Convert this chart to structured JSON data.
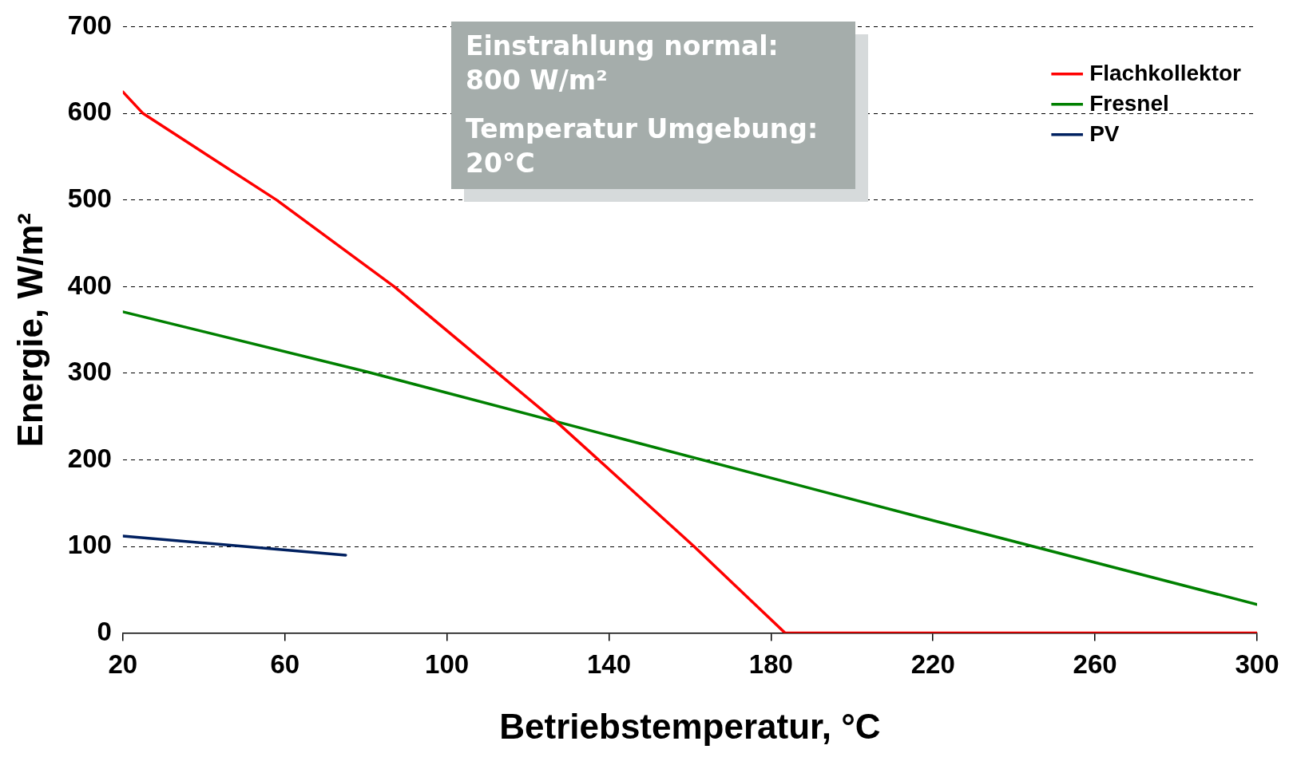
{
  "chart_data": {
    "type": "line",
    "xlabel": "Betriebstemperatur, °C",
    "ylabel": "Energie, W/m²",
    "annotations": [
      "Einstrahlung normal: 800 W/m²",
      "Temperatur Umgebung: 20°C"
    ],
    "series": [
      {
        "name": "Flachkollektor",
        "color": "#ff0000",
        "x": [
          20,
          25,
          58,
          87,
          128,
          161,
          183.5,
          300
        ],
        "values": [
          625,
          600,
          500,
          400,
          240,
          100,
          0,
          0
        ]
      },
      {
        "name": "Fresnel",
        "color": "#008000",
        "x": [
          20,
          80,
          220,
          300
        ],
        "values": [
          371,
          302,
          130,
          33
        ]
      },
      {
        "name": "PV",
        "color": "#002060",
        "x": [
          20,
          75
        ],
        "values": [
          112,
          90
        ]
      }
    ],
    "xlim": [
      20,
      300
    ],
    "xticks": [
      20,
      60,
      100,
      140,
      180,
      220,
      260,
      300
    ],
    "ylim": [
      0,
      700
    ],
    "yticks": [
      0,
      100,
      200,
      300,
      400,
      500,
      600,
      700
    ],
    "grid": "y",
    "legend": "top right",
    "marker": "none",
    "line_style": "solid"
  }
}
